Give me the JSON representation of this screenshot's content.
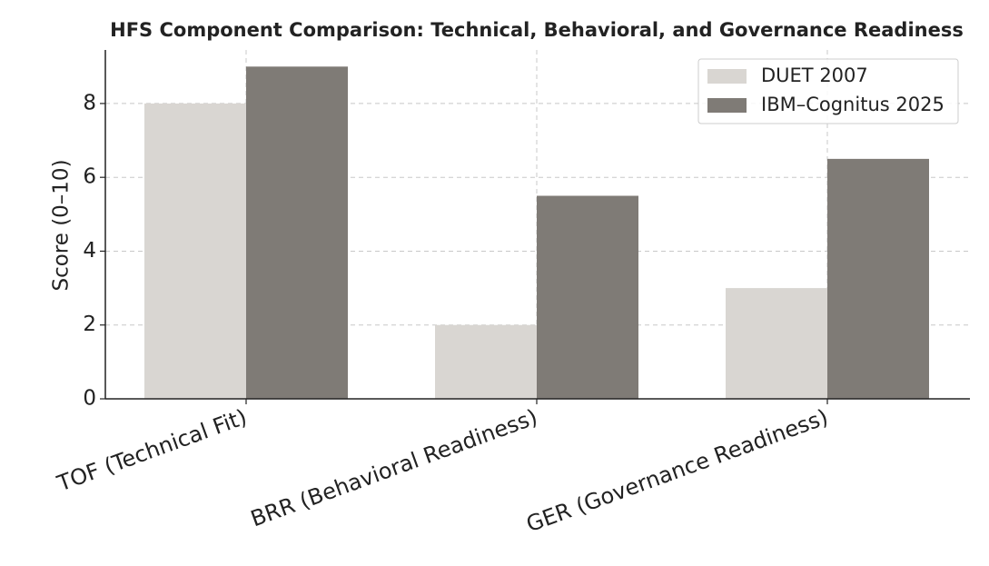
{
  "chart_data": {
    "type": "bar",
    "title": "HFS Component Comparison: Technical, Behavioral, and Governance Readiness",
    "y_label": "Score (0–10)",
    "categories": [
      "TOF (Technical Fit)",
      "BRR (Behavioral Readiness)",
      "GER (Governance Readiness)"
    ],
    "series": [
      {
        "name": "DUET 2007",
        "color": "#d9d6d2",
        "values": [
          8,
          2,
          3
        ]
      },
      {
        "name": "IBM–Cognitus 2025",
        "color": "#7f7b76",
        "values": [
          9,
          5.5,
          6.5
        ]
      }
    ],
    "ylim": [
      0,
      9.45
    ],
    "yticks": [
      0,
      2,
      4,
      6,
      8
    ],
    "grid": true,
    "legend": "upper-right"
  }
}
